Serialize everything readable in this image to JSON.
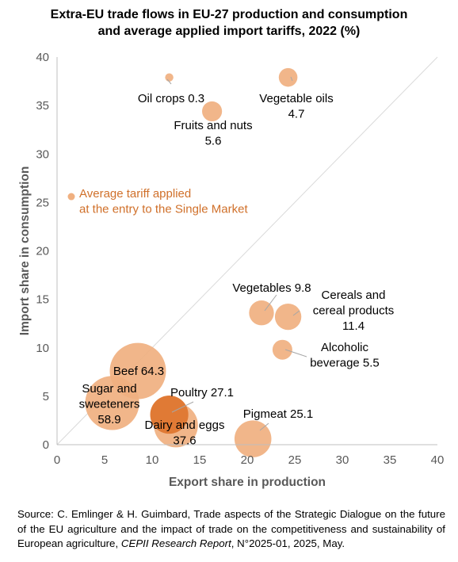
{
  "title_lines": [
    "Extra-EU trade flows in EU-27 production and consumption",
    "and average applied import tariffs, 2022 (%)"
  ],
  "source": {
    "prefix": "Source: C. Emlinger & H. Guimbard, Trade aspects of the Strategic Dialogue on the future of the EU agriculture and the impact of trade on the competitiveness and sustainability of European agriculture, ",
    "italic": "CEPII Research Report",
    "suffix": ", N°2025-01, 2025, May."
  },
  "chart_data": {
    "type": "scatter",
    "subtype": "bubble",
    "xlabel": "Export share in production",
    "ylabel": "Import share in consumption",
    "xlim": [
      0,
      40
    ],
    "ylim": [
      0,
      40
    ],
    "xticks": [
      "0",
      "5",
      "10",
      "15",
      "20",
      "25",
      "30",
      "35",
      "40"
    ],
    "yticks": [
      "0",
      "5",
      "10",
      "15",
      "20",
      "25",
      "30",
      "35",
      "40"
    ],
    "grid": false,
    "diagonal_line": true,
    "bubble_size_meaning": "Average tariff applied at the entry to the Single Market",
    "legend_lines": [
      "Average tariff applied",
      "at the entry to the Single Market"
    ],
    "legend_marker_position": [
      1.5,
      25.6
    ],
    "colors": {
      "bubble": "#f0b080",
      "highlight": "#e07a35",
      "legend_text": "#d0702a",
      "axis": "#bfbfbf",
      "diagonal": "#d9d9d9"
    },
    "points": [
      {
        "name": "Oil crops",
        "x": 11.8,
        "y": 37.9,
        "tariff": 0.3,
        "label_lines": [
          "Oil crops 0.3"
        ]
      },
      {
        "name": "Vegetable oils",
        "x": 24.3,
        "y": 37.9,
        "tariff": 4.7,
        "label_lines": [
          "Vegetable oils",
          "4.7"
        ]
      },
      {
        "name": "Fruits and nuts",
        "x": 16.3,
        "y": 34.4,
        "tariff": 5.6,
        "label_lines": [
          "Fruits and nuts",
          "5.6"
        ]
      },
      {
        "name": "Vegetables",
        "x": 21.5,
        "y": 13.6,
        "tariff": 9.8,
        "label_lines": [
          "Vegetables 9.8"
        ]
      },
      {
        "name": "Cereals and cereal products",
        "x": 24.3,
        "y": 13.2,
        "tariff": 11.4,
        "label_lines": [
          "Cereals and",
          "cereal products",
          "11.4"
        ]
      },
      {
        "name": "Alcoholic beverage",
        "x": 23.7,
        "y": 9.8,
        "tariff": 5.5,
        "label_lines": [
          "Alcoholic",
          "beverage 5.5"
        ]
      },
      {
        "name": "Beef",
        "x": 8.5,
        "y": 7.6,
        "tariff": 64.3,
        "label_lines": [
          "Beef 64.3"
        ]
      },
      {
        "name": "Sugar and sweeteners",
        "x": 5.8,
        "y": 4.3,
        "tariff": 58.9,
        "label_lines": [
          "Sugar and",
          "sweeteners",
          "58.9"
        ]
      },
      {
        "name": "Poultry",
        "x": 11.8,
        "y": 3.1,
        "tariff": 27.1,
        "label_lines": [
          "Poultry 27.1"
        ],
        "highlight": true
      },
      {
        "name": "Dairy and eggs",
        "x": 12.5,
        "y": 2.0,
        "tariff": 37.6,
        "label_lines": [
          "Dairy and eggs",
          "37.6"
        ]
      },
      {
        "name": "Pigmeat",
        "x": 20.6,
        "y": 0.6,
        "tariff": 25.1,
        "label_lines": [
          "Pigmeat 25.1"
        ]
      }
    ]
  }
}
